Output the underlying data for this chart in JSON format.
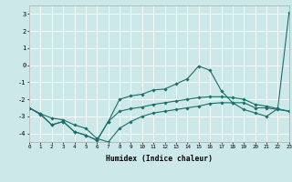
{
  "xlabel": "Humidex (Indice chaleur)",
  "bg_color": "#cde8e8",
  "grid_color": "#ffffff",
  "line_color": "#1a6e6a",
  "xlim": [
    0,
    23
  ],
  "ylim": [
    -4.5,
    3.5
  ],
  "xticks": [
    0,
    1,
    2,
    3,
    4,
    5,
    6,
    7,
    8,
    9,
    10,
    11,
    12,
    13,
    14,
    15,
    16,
    17,
    18,
    19,
    20,
    21,
    22,
    23
  ],
  "yticks": [
    -4,
    -3,
    -2,
    -1,
    0,
    1,
    2,
    3
  ],
  "line1_x": [
    0,
    1,
    2,
    3,
    4,
    5,
    6,
    7,
    8,
    9,
    10,
    11,
    12,
    13,
    14,
    15,
    16,
    17,
    18,
    19,
    20,
    21,
    22,
    23
  ],
  "line1_y": [
    -2.5,
    -2.9,
    -3.5,
    -3.3,
    -3.9,
    -4.1,
    -4.4,
    -3.3,
    -2.0,
    -1.8,
    -1.7,
    -1.45,
    -1.4,
    -1.1,
    -0.8,
    -0.05,
    -0.3,
    -1.5,
    -2.2,
    -2.6,
    -2.8,
    -3.0,
    -2.55,
    3.1
  ],
  "line2_x": [
    0,
    1,
    2,
    3,
    4,
    5,
    6,
    7,
    8,
    9,
    10,
    11,
    12,
    13,
    14,
    15,
    16,
    17,
    18,
    19,
    20,
    21,
    22,
    23
  ],
  "line2_y": [
    -2.5,
    -2.85,
    -3.5,
    -3.3,
    -3.9,
    -4.1,
    -4.4,
    -3.3,
    -2.7,
    -2.55,
    -2.45,
    -2.3,
    -2.2,
    -2.1,
    -2.0,
    -1.9,
    -1.85,
    -1.85,
    -1.9,
    -2.0,
    -2.3,
    -2.4,
    -2.55,
    -2.7
  ],
  "line3_x": [
    0,
    1,
    2,
    3,
    4,
    5,
    6,
    7,
    8,
    9,
    10,
    11,
    12,
    13,
    14,
    15,
    16,
    17,
    18,
    19,
    20,
    21,
    22,
    23
  ],
  "line3_y": [
    -2.5,
    -2.85,
    -3.1,
    -3.2,
    -3.5,
    -3.7,
    -4.3,
    -4.5,
    -3.7,
    -3.3,
    -3.0,
    -2.8,
    -2.7,
    -2.6,
    -2.5,
    -2.4,
    -2.25,
    -2.2,
    -2.2,
    -2.2,
    -2.5,
    -2.5,
    -2.6,
    -2.7
  ]
}
